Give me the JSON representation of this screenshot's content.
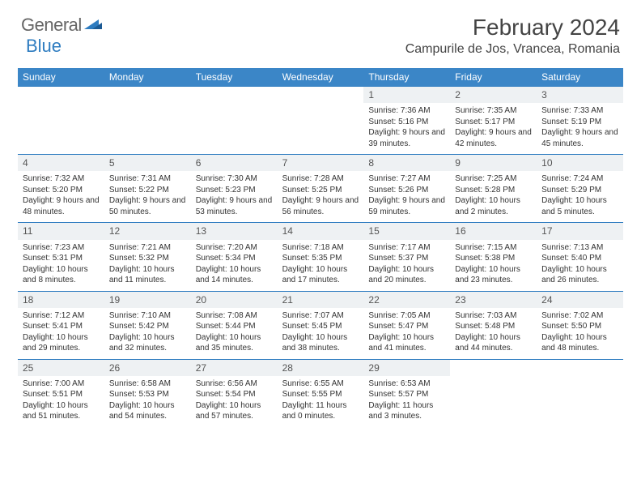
{
  "logo": {
    "general": "General",
    "blue": "Blue"
  },
  "colors": {
    "header_bg": "#3b86c7",
    "border": "#2e7cc0",
    "daynum_bg": "#eef1f3",
    "text": "#333333",
    "title": "#444444"
  },
  "title": "February 2024",
  "location": "Campurile de Jos, Vrancea, Romania",
  "day_headers": [
    "Sunday",
    "Monday",
    "Tuesday",
    "Wednesday",
    "Thursday",
    "Friday",
    "Saturday"
  ],
  "weeks": [
    [
      {
        "empty": true
      },
      {
        "empty": true
      },
      {
        "empty": true
      },
      {
        "empty": true
      },
      {
        "day": "1",
        "sunrise": "Sunrise: 7:36 AM",
        "sunset": "Sunset: 5:16 PM",
        "daylight": "Daylight: 9 hours and 39 minutes."
      },
      {
        "day": "2",
        "sunrise": "Sunrise: 7:35 AM",
        "sunset": "Sunset: 5:17 PM",
        "daylight": "Daylight: 9 hours and 42 minutes."
      },
      {
        "day": "3",
        "sunrise": "Sunrise: 7:33 AM",
        "sunset": "Sunset: 5:19 PM",
        "daylight": "Daylight: 9 hours and 45 minutes."
      }
    ],
    [
      {
        "day": "4",
        "sunrise": "Sunrise: 7:32 AM",
        "sunset": "Sunset: 5:20 PM",
        "daylight": "Daylight: 9 hours and 48 minutes."
      },
      {
        "day": "5",
        "sunrise": "Sunrise: 7:31 AM",
        "sunset": "Sunset: 5:22 PM",
        "daylight": "Daylight: 9 hours and 50 minutes."
      },
      {
        "day": "6",
        "sunrise": "Sunrise: 7:30 AM",
        "sunset": "Sunset: 5:23 PM",
        "daylight": "Daylight: 9 hours and 53 minutes."
      },
      {
        "day": "7",
        "sunrise": "Sunrise: 7:28 AM",
        "sunset": "Sunset: 5:25 PM",
        "daylight": "Daylight: 9 hours and 56 minutes."
      },
      {
        "day": "8",
        "sunrise": "Sunrise: 7:27 AM",
        "sunset": "Sunset: 5:26 PM",
        "daylight": "Daylight: 9 hours and 59 minutes."
      },
      {
        "day": "9",
        "sunrise": "Sunrise: 7:25 AM",
        "sunset": "Sunset: 5:28 PM",
        "daylight": "Daylight: 10 hours and 2 minutes."
      },
      {
        "day": "10",
        "sunrise": "Sunrise: 7:24 AM",
        "sunset": "Sunset: 5:29 PM",
        "daylight": "Daylight: 10 hours and 5 minutes."
      }
    ],
    [
      {
        "day": "11",
        "sunrise": "Sunrise: 7:23 AM",
        "sunset": "Sunset: 5:31 PM",
        "daylight": "Daylight: 10 hours and 8 minutes."
      },
      {
        "day": "12",
        "sunrise": "Sunrise: 7:21 AM",
        "sunset": "Sunset: 5:32 PM",
        "daylight": "Daylight: 10 hours and 11 minutes."
      },
      {
        "day": "13",
        "sunrise": "Sunrise: 7:20 AM",
        "sunset": "Sunset: 5:34 PM",
        "daylight": "Daylight: 10 hours and 14 minutes."
      },
      {
        "day": "14",
        "sunrise": "Sunrise: 7:18 AM",
        "sunset": "Sunset: 5:35 PM",
        "daylight": "Daylight: 10 hours and 17 minutes."
      },
      {
        "day": "15",
        "sunrise": "Sunrise: 7:17 AM",
        "sunset": "Sunset: 5:37 PM",
        "daylight": "Daylight: 10 hours and 20 minutes."
      },
      {
        "day": "16",
        "sunrise": "Sunrise: 7:15 AM",
        "sunset": "Sunset: 5:38 PM",
        "daylight": "Daylight: 10 hours and 23 minutes."
      },
      {
        "day": "17",
        "sunrise": "Sunrise: 7:13 AM",
        "sunset": "Sunset: 5:40 PM",
        "daylight": "Daylight: 10 hours and 26 minutes."
      }
    ],
    [
      {
        "day": "18",
        "sunrise": "Sunrise: 7:12 AM",
        "sunset": "Sunset: 5:41 PM",
        "daylight": "Daylight: 10 hours and 29 minutes."
      },
      {
        "day": "19",
        "sunrise": "Sunrise: 7:10 AM",
        "sunset": "Sunset: 5:42 PM",
        "daylight": "Daylight: 10 hours and 32 minutes."
      },
      {
        "day": "20",
        "sunrise": "Sunrise: 7:08 AM",
        "sunset": "Sunset: 5:44 PM",
        "daylight": "Daylight: 10 hours and 35 minutes."
      },
      {
        "day": "21",
        "sunrise": "Sunrise: 7:07 AM",
        "sunset": "Sunset: 5:45 PM",
        "daylight": "Daylight: 10 hours and 38 minutes."
      },
      {
        "day": "22",
        "sunrise": "Sunrise: 7:05 AM",
        "sunset": "Sunset: 5:47 PM",
        "daylight": "Daylight: 10 hours and 41 minutes."
      },
      {
        "day": "23",
        "sunrise": "Sunrise: 7:03 AM",
        "sunset": "Sunset: 5:48 PM",
        "daylight": "Daylight: 10 hours and 44 minutes."
      },
      {
        "day": "24",
        "sunrise": "Sunrise: 7:02 AM",
        "sunset": "Sunset: 5:50 PM",
        "daylight": "Daylight: 10 hours and 48 minutes."
      }
    ],
    [
      {
        "day": "25",
        "sunrise": "Sunrise: 7:00 AM",
        "sunset": "Sunset: 5:51 PM",
        "daylight": "Daylight: 10 hours and 51 minutes."
      },
      {
        "day": "26",
        "sunrise": "Sunrise: 6:58 AM",
        "sunset": "Sunset: 5:53 PM",
        "daylight": "Daylight: 10 hours and 54 minutes."
      },
      {
        "day": "27",
        "sunrise": "Sunrise: 6:56 AM",
        "sunset": "Sunset: 5:54 PM",
        "daylight": "Daylight: 10 hours and 57 minutes."
      },
      {
        "day": "28",
        "sunrise": "Sunrise: 6:55 AM",
        "sunset": "Sunset: 5:55 PM",
        "daylight": "Daylight: 11 hours and 0 minutes."
      },
      {
        "day": "29",
        "sunrise": "Sunrise: 6:53 AM",
        "sunset": "Sunset: 5:57 PM",
        "daylight": "Daylight: 11 hours and 3 minutes."
      },
      {
        "empty": true
      },
      {
        "empty": true
      }
    ]
  ]
}
